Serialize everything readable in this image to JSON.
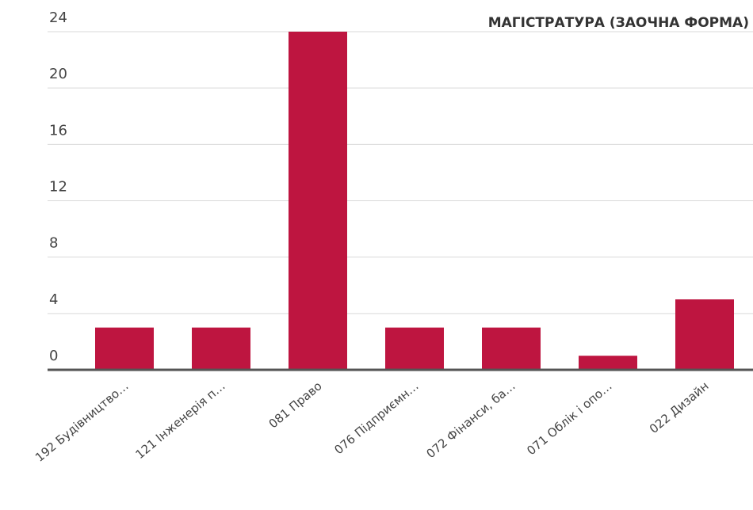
{
  "chart_data": {
    "type": "bar",
    "title": "МАГІСТРАТУРА (ЗАОЧНА ФОРМА)",
    "categories": [
      "192 Будівництво…",
      "121 Інженерія п…",
      "081 Право",
      "076 Підприємн…",
      "072 Фінанси, ба…",
      "071 Облік і опо…",
      "022 Дизайн"
    ],
    "values": [
      3,
      3,
      24,
      3,
      3,
      1,
      5
    ],
    "color": "#be1540",
    "ylim": [
      0,
      24
    ],
    "yticks": [
      0,
      4,
      8,
      12,
      16,
      20,
      24
    ],
    "grid": true
  }
}
